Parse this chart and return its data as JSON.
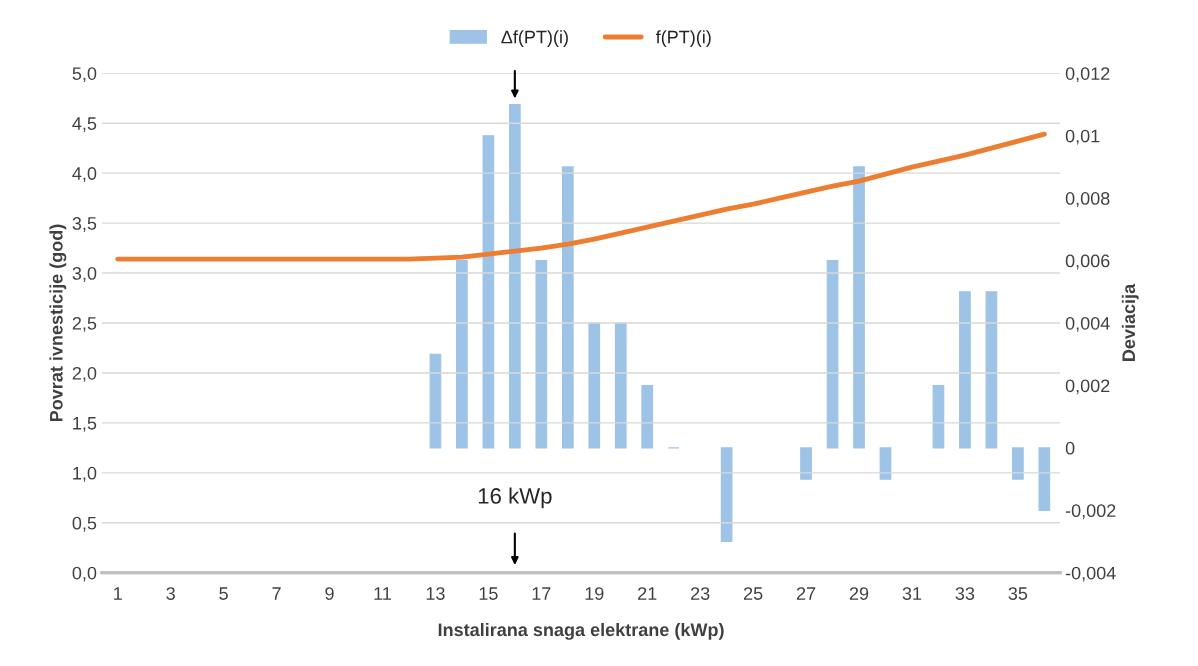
{
  "chart_data": {
    "type": "bar",
    "xlabel": "Instalirana snaga elektrane (kWp)",
    "ylabel": "Povrat ivnesticije (god)",
    "y2label": "Deviacija",
    "categories": [
      "1",
      null,
      "3",
      null,
      "5",
      null,
      "7",
      null,
      "9",
      null,
      "11",
      null,
      "13",
      null,
      "15",
      null,
      "17",
      null,
      "19",
      null,
      "21",
      null,
      "23",
      null,
      "25",
      null,
      "27",
      null,
      "29",
      null,
      "31",
      null,
      "33",
      null,
      "35",
      null
    ],
    "series": [
      {
        "name": "Δf(PT)(i)",
        "axis": "y2",
        "color": "#9dc3e6",
        "values": [
          null,
          null,
          null,
          null,
          null,
          null,
          null,
          null,
          null,
          null,
          null,
          null,
          0.003,
          0.006,
          0.01,
          0.011,
          0.006,
          0.009,
          0.004,
          0.004,
          0.002,
          0,
          null,
          -0.003,
          null,
          null,
          -0.001,
          0.006,
          0.009,
          -0.001,
          null,
          0.002,
          0.005,
          0.005,
          -0.001,
          -0.002
        ]
      },
      {
        "name": "f(PT)(i)",
        "type": "line",
        "axis": "y",
        "color": "#ed7d31",
        "values": [
          3.14,
          3.14,
          3.14,
          3.14,
          3.14,
          3.14,
          3.14,
          3.14,
          3.14,
          3.14,
          3.14,
          3.14,
          3.15,
          3.16,
          3.19,
          3.22,
          3.25,
          3.29,
          3.34,
          3.4,
          3.46,
          3.52,
          3.58,
          3.64,
          3.69,
          3.75,
          3.81,
          3.87,
          3.92,
          3.99,
          4.06,
          4.12,
          4.18,
          4.25,
          4.32,
          4.39
        ]
      }
    ],
    "ylim": [
      0,
      5
    ],
    "yticks": [
      {
        "value": 0,
        "label": "0,0"
      },
      {
        "value": 0.5,
        "label": "0,5"
      },
      {
        "value": 1,
        "label": "1,0"
      },
      {
        "value": 1.5,
        "label": "1,5"
      },
      {
        "value": 2,
        "label": "2,0"
      },
      {
        "value": 2.5,
        "label": "2,5"
      },
      {
        "value": 3,
        "label": "3,0"
      },
      {
        "value": 3.5,
        "label": "3,5"
      },
      {
        "value": 4,
        "label": "4,0"
      },
      {
        "value": 4.5,
        "label": "4,5"
      },
      {
        "value": 5,
        "label": "5,0"
      }
    ],
    "y2lim": [
      -0.004,
      0.012
    ],
    "y2ticks": [
      {
        "value": -0.004,
        "label": "-0,004"
      },
      {
        "value": -0.002,
        "label": "-0,002"
      },
      0,
      {
        "value": 0.002,
        "label": "0,002"
      },
      {
        "value": 0.004,
        "label": "0,004"
      },
      {
        "value": 0.006,
        "label": "0,006"
      },
      {
        "value": 0.008,
        "label": "0,008"
      },
      {
        "value": 0.01,
        "label": "0,01"
      },
      {
        "value": 0.012,
        "label": "0,012"
      }
    ],
    "grid": "y",
    "legend": "top",
    "annotations": [
      "16 kWp"
    ]
  }
}
